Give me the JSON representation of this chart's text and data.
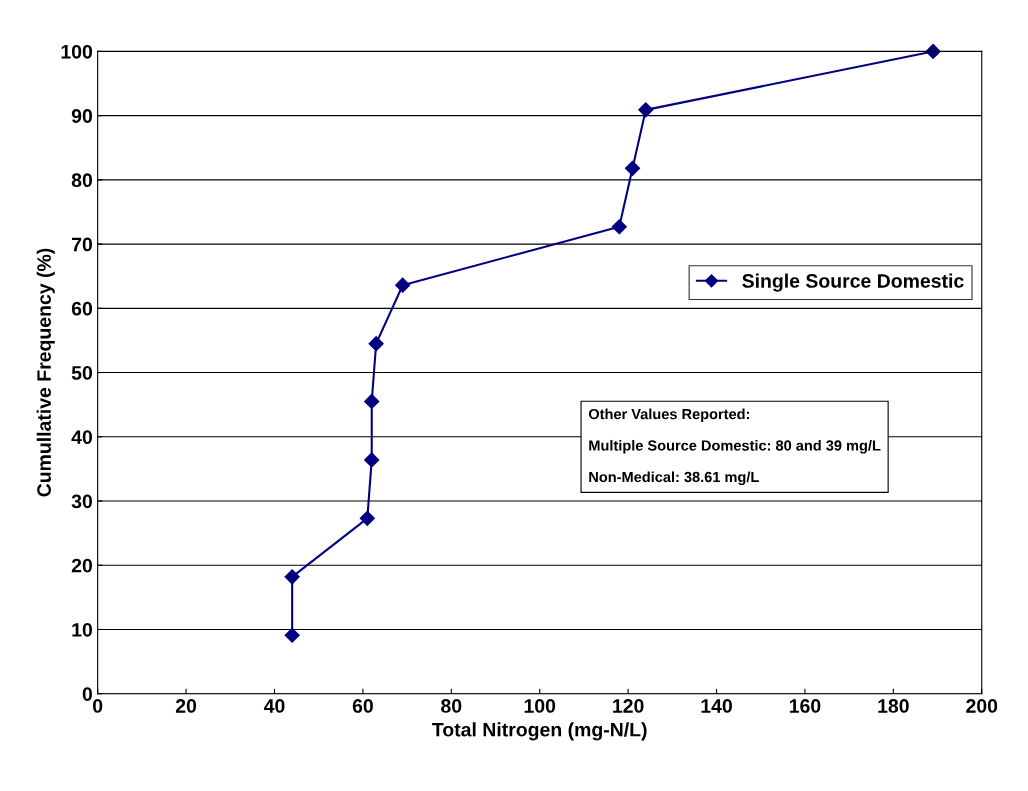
{
  "chart_data": {
    "type": "line",
    "xlabel": "Total Nitrogen (mg-N/L)",
    "ylabel": "Cumullative Frequency (%)",
    "x": [
      44,
      44,
      61,
      62,
      62,
      63,
      69,
      118,
      121,
      124,
      189
    ],
    "series": [
      {
        "name": "Single Source Domestic",
        "color": "#000080",
        "values": [
          9.1,
          18.2,
          27.3,
          36.4,
          45.5,
          54.5,
          63.6,
          72.7,
          81.8,
          90.9,
          100
        ]
      }
    ],
    "xlim": [
      0,
      200
    ],
    "xticks": [
      0,
      20,
      40,
      60,
      80,
      100,
      120,
      140,
      160,
      180,
      200
    ],
    "ylim": [
      0,
      100
    ],
    "yticks": [
      0,
      10,
      20,
      30,
      40,
      50,
      60,
      70,
      80,
      90,
      100
    ],
    "grid": "y",
    "legend": "right",
    "marker": "diamond",
    "line_style": "solid",
    "annotations": [
      "Other Values Reported:",
      "Multiple Source Domestic: 80 and 39 mg/L",
      "Non-Medical: 38.61 mg/L"
    ]
  }
}
